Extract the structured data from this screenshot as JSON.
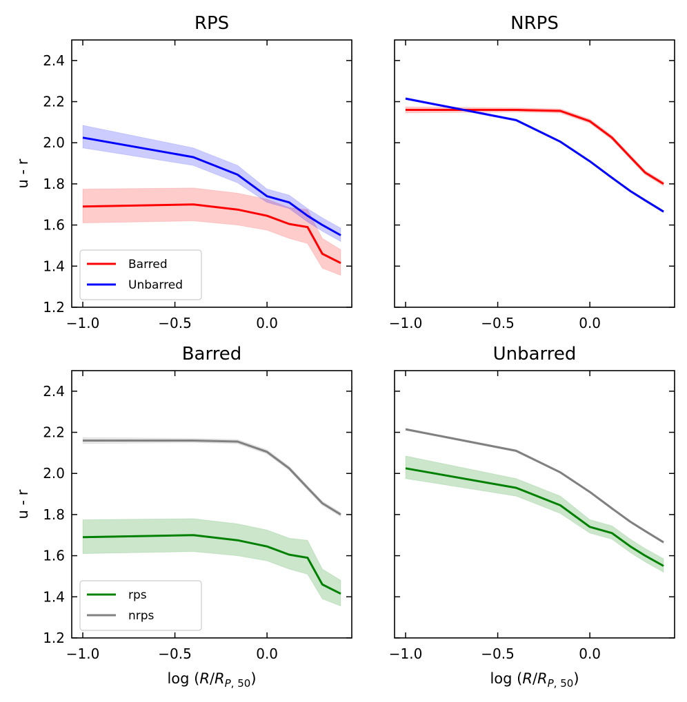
{
  "x_axis_label": "log (R/R_P,50)",
  "y_axis_label": "u - r",
  "colors": {
    "Barred": "#ff0000",
    "Unbarred": "#0000ff",
    "rps": "#008000",
    "nrps": "#808080"
  },
  "chart_data": [
    {
      "type": "line",
      "title": "RPS",
      "xlabel": "",
      "ylabel": "u - r",
      "xlim": [
        -1.06,
        0.46
      ],
      "ylim": [
        1.2,
        2.5
      ],
      "xticks": [
        "−1.0",
        "−0.5",
        "0.0"
      ],
      "yticks": [
        "1.2",
        "1.4",
        "1.6",
        "1.8",
        "2.0",
        "2.2",
        "2.4"
      ],
      "legend": "lower-left",
      "series": [
        {
          "name": "Barred",
          "color": "#ff0000",
          "x": [
            -1.0,
            -0.4,
            -0.16,
            0.0,
            0.12,
            0.22,
            0.3,
            0.4
          ],
          "y": [
            1.69,
            1.7,
            1.675,
            1.645,
            1.605,
            1.59,
            1.46,
            1.415
          ],
          "band_low": [
            1.61,
            1.62,
            1.6,
            1.575,
            1.535,
            1.51,
            1.39,
            1.355
          ],
          "band_high": [
            1.775,
            1.78,
            1.755,
            1.725,
            1.685,
            1.675,
            1.535,
            1.48
          ]
        },
        {
          "name": "Unbarred",
          "color": "#0000ff",
          "x": [
            -1.0,
            -0.4,
            -0.16,
            0.0,
            0.12,
            0.22,
            0.3,
            0.4
          ],
          "y": [
            2.025,
            1.93,
            1.845,
            1.74,
            1.71,
            1.645,
            1.6,
            1.55
          ],
          "band_low": [
            1.975,
            1.89,
            1.805,
            1.71,
            1.68,
            1.615,
            1.57,
            1.52
          ],
          "band_high": [
            2.085,
            1.975,
            1.89,
            1.775,
            1.745,
            1.68,
            1.635,
            1.585
          ]
        }
      ]
    },
    {
      "type": "line",
      "title": "NRPS",
      "xlabel": "",
      "ylabel": "",
      "xlim": [
        -1.06,
        0.46
      ],
      "ylim": [
        1.2,
        2.5
      ],
      "xticks": [
        "−1.0",
        "−0.5",
        "0.0"
      ],
      "yticks": [],
      "series": [
        {
          "name": "Barred",
          "color": "#ff0000",
          "x": [
            -1.0,
            -0.4,
            -0.16,
            0.0,
            0.12,
            0.22,
            0.3,
            0.4
          ],
          "y": [
            2.16,
            2.16,
            2.155,
            2.105,
            2.025,
            1.93,
            1.855,
            1.8
          ],
          "band_low": [
            2.145,
            2.15,
            2.145,
            2.095,
            2.015,
            1.92,
            1.845,
            1.79
          ],
          "band_high": [
            2.175,
            2.17,
            2.165,
            2.115,
            2.035,
            1.94,
            1.865,
            1.81
          ]
        },
        {
          "name": "Unbarred",
          "color": "#0000ff",
          "x": [
            -1.0,
            -0.4,
            -0.16,
            0.0,
            0.12,
            0.22,
            0.3,
            0.4
          ],
          "y": [
            2.215,
            2.11,
            2.005,
            1.91,
            1.83,
            1.765,
            1.72,
            1.665
          ],
          "band_low": [
            2.21,
            2.105,
            2.0,
            1.905,
            1.825,
            1.76,
            1.715,
            1.66
          ],
          "band_high": [
            2.22,
            2.115,
            2.01,
            1.915,
            1.835,
            1.77,
            1.725,
            1.67
          ]
        }
      ]
    },
    {
      "type": "line",
      "title": "Barred",
      "xlabel": "log (R/R_P,50)",
      "ylabel": "u - r",
      "xlim": [
        -1.06,
        0.46
      ],
      "ylim": [
        1.2,
        2.5
      ],
      "xticks": [
        "−1.0",
        "−0.5",
        "0.0"
      ],
      "yticks": [
        "1.2",
        "1.4",
        "1.6",
        "1.8",
        "2.0",
        "2.2",
        "2.4"
      ],
      "legend": "lower-left",
      "series": [
        {
          "name": "rps",
          "color": "#008000",
          "x": [
            -1.0,
            -0.4,
            -0.16,
            0.0,
            0.12,
            0.22,
            0.3,
            0.4
          ],
          "y": [
            1.69,
            1.7,
            1.675,
            1.645,
            1.605,
            1.59,
            1.46,
            1.415
          ],
          "band_low": [
            1.61,
            1.62,
            1.6,
            1.575,
            1.535,
            1.51,
            1.39,
            1.355
          ],
          "band_high": [
            1.775,
            1.78,
            1.755,
            1.725,
            1.685,
            1.675,
            1.535,
            1.48
          ]
        },
        {
          "name": "nrps",
          "color": "#808080",
          "x": [
            -1.0,
            -0.4,
            -0.16,
            0.0,
            0.12,
            0.22,
            0.3,
            0.4
          ],
          "y": [
            2.16,
            2.16,
            2.155,
            2.105,
            2.025,
            1.93,
            1.855,
            1.8
          ],
          "band_low": [
            2.145,
            2.15,
            2.145,
            2.095,
            2.015,
            1.92,
            1.845,
            1.79
          ],
          "band_high": [
            2.175,
            2.17,
            2.165,
            2.115,
            2.035,
            1.94,
            1.865,
            1.81
          ]
        }
      ]
    },
    {
      "type": "line",
      "title": "Unbarred",
      "xlabel": "log (R/R_P,50)",
      "ylabel": "",
      "xlim": [
        -1.06,
        0.46
      ],
      "ylim": [
        1.2,
        2.5
      ],
      "xticks": [
        "−1.0",
        "−0.5",
        "0.0"
      ],
      "yticks": [],
      "series": [
        {
          "name": "rps",
          "color": "#008000",
          "x": [
            -1.0,
            -0.4,
            -0.16,
            0.0,
            0.12,
            0.22,
            0.3,
            0.4
          ],
          "y": [
            2.025,
            1.93,
            1.845,
            1.74,
            1.71,
            1.645,
            1.6,
            1.55
          ],
          "band_low": [
            1.975,
            1.89,
            1.805,
            1.71,
            1.68,
            1.615,
            1.57,
            1.52
          ],
          "band_high": [
            2.085,
            1.975,
            1.89,
            1.775,
            1.745,
            1.68,
            1.635,
            1.585
          ]
        },
        {
          "name": "nrps",
          "color": "#808080",
          "x": [
            -1.0,
            -0.4,
            -0.16,
            0.0,
            0.12,
            0.22,
            0.3,
            0.4
          ],
          "y": [
            2.215,
            2.11,
            2.005,
            1.91,
            1.83,
            1.765,
            1.72,
            1.665
          ],
          "band_low": [
            2.21,
            2.105,
            2.0,
            1.905,
            1.825,
            1.76,
            1.715,
            1.66
          ],
          "band_high": [
            2.22,
            2.115,
            2.01,
            1.915,
            1.835,
            1.77,
            1.725,
            1.67
          ]
        }
      ]
    }
  ]
}
